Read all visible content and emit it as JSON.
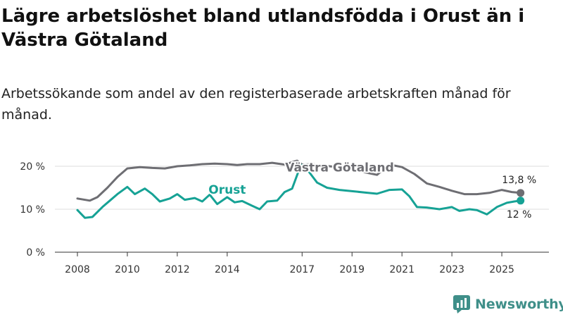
{
  "title": "Lägre arbetslöshet bland utlandsfödda i Orust än i Västra Götaland",
  "subtitle": "Arbetssökande som andel av den registerbaserade arbetskraften månad för månad.",
  "logo_text": "Newsworthy",
  "colors": {
    "orust": "#16a295",
    "vastra": "#6e6e73",
    "axis": "#333333",
    "grid": "#dcdcdc"
  },
  "chart_data": {
    "type": "line",
    "title": "Lägre arbetslöshet bland utlandsfödda i Orust än i Västra Götaland",
    "subtitle": "Arbetssökande som andel av den registerbaserade arbetskraften månad för månad.",
    "xlabel": "",
    "ylabel": "",
    "xlim": [
      2008,
      2025.9
    ],
    "ylim": [
      0,
      20
    ],
    "x_ticks": [
      2008,
      2010,
      2012,
      2014,
      2017,
      2019,
      2021,
      2023,
      2025
    ],
    "x_tick_labels": [
      "2008",
      "2010",
      "2012",
      "2014",
      "2017",
      "2019",
      "2021",
      "2023",
      "2025"
    ],
    "y_ticks": [
      0,
      10,
      20
    ],
    "y_tick_labels": [
      "0 %",
      "10 %",
      "20 %"
    ],
    "grid": true,
    "series": [
      {
        "name": "Västra Götaland",
        "points": [
          [
            2008,
            12.5
          ],
          [
            2008.5,
            12.0
          ],
          [
            2008.8,
            12.8
          ],
          [
            2009.2,
            15.0
          ],
          [
            2009.6,
            17.5
          ],
          [
            2010,
            19.5
          ],
          [
            2010.5,
            19.8
          ],
          [
            2011,
            19.6
          ],
          [
            2011.5,
            19.5
          ],
          [
            2012,
            20.0
          ],
          [
            2012.5,
            20.2
          ],
          [
            2013,
            20.5
          ],
          [
            2013.5,
            20.6
          ],
          [
            2014,
            20.5
          ],
          [
            2014.4,
            20.3
          ],
          [
            2014.8,
            20.5
          ],
          [
            2015.3,
            20.5
          ],
          [
            2015.8,
            20.8
          ],
          [
            2016.3,
            20.4
          ],
          [
            2016.8,
            21.3
          ],
          [
            2017,
            20.4
          ],
          [
            2017.4,
            20.5
          ],
          [
            2017.8,
            20.2
          ],
          [
            2018.4,
            19.8
          ],
          [
            2019,
            19.3
          ],
          [
            2019.5,
            18.6
          ],
          [
            2020,
            18.0
          ],
          [
            2020.5,
            20.4
          ],
          [
            2021,
            19.8
          ],
          [
            2021.5,
            18.2
          ],
          [
            2022,
            16.0
          ],
          [
            2022.5,
            15.2
          ],
          [
            2023,
            14.3
          ],
          [
            2023.5,
            13.5
          ],
          [
            2024,
            13.5
          ],
          [
            2024.5,
            13.8
          ],
          [
            2025,
            14.5
          ],
          [
            2025.4,
            14.0
          ],
          [
            2025.75,
            13.8
          ]
        ],
        "end_label": "13,8 %"
      },
      {
        "name": "Orust",
        "points": [
          [
            2008,
            9.8
          ],
          [
            2008.3,
            8.0
          ],
          [
            2008.6,
            8.2
          ],
          [
            2009,
            10.5
          ],
          [
            2009.3,
            12.0
          ],
          [
            2009.6,
            13.5
          ],
          [
            2010,
            15.2
          ],
          [
            2010.3,
            13.5
          ],
          [
            2010.7,
            14.8
          ],
          [
            2011,
            13.5
          ],
          [
            2011.3,
            11.8
          ],
          [
            2011.7,
            12.5
          ],
          [
            2012,
            13.5
          ],
          [
            2012.3,
            12.2
          ],
          [
            2012.7,
            12.6
          ],
          [
            2013,
            11.8
          ],
          [
            2013.3,
            13.4
          ],
          [
            2013.6,
            11.2
          ],
          [
            2014,
            12.8
          ],
          [
            2014.3,
            11.6
          ],
          [
            2014.6,
            11.9
          ],
          [
            2015,
            10.8
          ],
          [
            2015.3,
            10.0
          ],
          [
            2015.6,
            11.8
          ],
          [
            2016,
            12.0
          ],
          [
            2016.3,
            14.0
          ],
          [
            2016.6,
            14.8
          ],
          [
            2016.9,
            19.5
          ],
          [
            2017,
            20.3
          ],
          [
            2017.3,
            18.5
          ],
          [
            2017.6,
            16.2
          ],
          [
            2018,
            15.0
          ],
          [
            2018.5,
            14.5
          ],
          [
            2019,
            14.2
          ],
          [
            2019.5,
            13.9
          ],
          [
            2020,
            13.6
          ],
          [
            2020.5,
            14.5
          ],
          [
            2021,
            14.6
          ],
          [
            2021.3,
            13.0
          ],
          [
            2021.6,
            10.5
          ],
          [
            2022,
            10.4
          ],
          [
            2022.5,
            10.0
          ],
          [
            2023,
            10.5
          ],
          [
            2023.3,
            9.6
          ],
          [
            2023.7,
            10.0
          ],
          [
            2024,
            9.8
          ],
          [
            2024.4,
            8.8
          ],
          [
            2024.8,
            10.5
          ],
          [
            2025.2,
            11.5
          ],
          [
            2025.5,
            11.8
          ],
          [
            2025.75,
            12.0
          ]
        ],
        "end_label": "12 %"
      }
    ],
    "annotations": [
      {
        "text": "Västra Götaland",
        "series": "Västra Götaland",
        "x": 2018.5,
        "y": 18.8
      },
      {
        "text": "Orust",
        "series": "Orust",
        "x": 2014.0,
        "y": 13.6
      }
    ]
  }
}
